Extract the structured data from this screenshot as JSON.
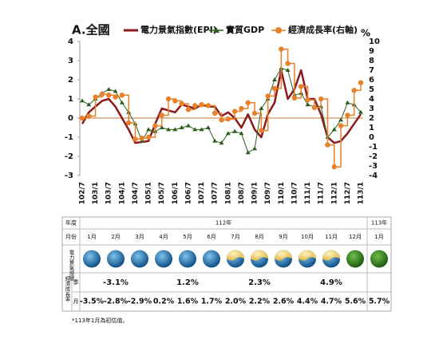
{
  "chart_data": {
    "type": "line",
    "title": "A.全國",
    "categories": [
      "102/7",
      null,
      "103/1",
      null,
      "103/7",
      null,
      "104/1",
      null,
      "104/7",
      null,
      "105/1",
      null,
      "105/7",
      null,
      "106/1",
      null,
      "106/7",
      null,
      "107/1",
      null,
      "107/7",
      null,
      "108/1",
      null,
      "108/7",
      null,
      "109/1",
      null,
      "109/7",
      null,
      "110/1",
      null,
      "110/7",
      null,
      "111/1",
      null,
      "111/7",
      null,
      "112/1",
      null,
      "112/7",
      null,
      "113/1"
    ],
    "series": [
      {
        "name": "電力景氣指數(EPI)",
        "color": "#8b1a1a",
        "values": [
          -0.3,
          0.3,
          0.6,
          0.9,
          1.0,
          0.6,
          0.0,
          -0.6,
          -1.3,
          -1.25,
          -1.2,
          -0.3,
          0.5,
          0.4,
          0.3,
          0.7,
          0.6,
          0.5,
          0.7,
          0.6,
          0.6,
          0.1,
          0.3,
          0.0,
          -0.5,
          0.2,
          -0.6,
          -1.0,
          0.2,
          0.8,
          2.5,
          1.0,
          1.5,
          2.5,
          1.0,
          1.0,
          0.2,
          -1.0,
          -1.3,
          -1.2,
          -0.8,
          -0.3,
          0.2
        ]
      },
      {
        "name": "實質GDP",
        "color": "#2e5e1e",
        "values": [
          0.9,
          0.7,
          1.0,
          1.3,
          1.5,
          1.4,
          0.8,
          0.3,
          -0.3,
          -1.2,
          -0.6,
          -0.7,
          -0.5,
          -0.6,
          -0.6,
          -0.5,
          -0.4,
          -0.6,
          -0.6,
          -0.5,
          -1.2,
          -1.3,
          -0.8,
          -0.7,
          -0.8,
          -1.8,
          -1.6,
          0.5,
          1.0,
          2.0,
          2.6,
          2.5,
          1.2,
          1.3,
          0.7,
          0.6,
          0.6,
          -1.0,
          -0.6,
          -0.1,
          0.8,
          0.7,
          0.3
        ]
      },
      {
        "name": "經濟成長率(右軸)",
        "color": "#e8822a",
        "axis": "y2",
        "values": [
          2.0,
          2.2,
          4.2,
          4.5,
          4.4,
          4.2,
          4.4,
          1.5,
          -0.2,
          -0.1,
          0.0,
          1.2,
          2.3,
          4.0,
          3.8,
          3.5,
          2.9,
          3.3,
          3.4,
          3.3,
          2.5,
          1.8,
          1.9,
          2.7,
          3.0,
          3.6,
          2.5,
          0.7,
          4.3,
          5.1,
          9.2,
          7.7,
          4.1,
          5.3,
          3.9,
          3.1,
          4.0,
          -0.8,
          -3.1,
          1.2,
          2.3,
          4.9,
          5.7
        ]
      }
    ],
    "ylim": [
      -3,
      4
    ],
    "yticks": [
      -3,
      -2,
      -1,
      0,
      1,
      2,
      3,
      4
    ],
    "y2label": "%",
    "y2lim": [
      -4,
      10
    ],
    "y2ticks": [
      -4,
      -3,
      -2,
      -1,
      0,
      1,
      2,
      3,
      4,
      5,
      6,
      7,
      8,
      9,
      10
    ],
    "y2_negative_color": "#c00000",
    "zero_line_color": "#c8783a"
  },
  "table": {
    "header_year": "年度",
    "year_112": "112年",
    "year_113": "113年",
    "header_month": "月份",
    "months": [
      "1月",
      "2月",
      "3月",
      "4月",
      "5月",
      "6月",
      "7月",
      "8月",
      "9月",
      "10月",
      "11月",
      "12月",
      "1月"
    ],
    "signal_label": "電力景氣燈號",
    "signals": [
      "blue",
      "blue",
      "blue",
      "blue",
      "blue",
      "blue",
      "yellow-blue",
      "yellow-blue",
      "yellow-blue",
      "yellow-blue",
      "yellow-blue",
      "green",
      "green"
    ],
    "growth_label": "經濟成長率",
    "quarter_label": "季",
    "quarterly": [
      "-3.1%",
      "1.2%",
      "2.3%",
      "4.9%"
    ],
    "month_label": "月",
    "monthly": [
      "-3.5%",
      "-2.8%",
      "-2.9%",
      "0.2%",
      "1.6%",
      "1.7%",
      "2.0%",
      "2.2%",
      "2.6%",
      "4.4%",
      "4.7%",
      "5.6%",
      "5.7%"
    ],
    "highlight_color": "#e00000"
  },
  "footnote": "*113年1月為初估值。"
}
